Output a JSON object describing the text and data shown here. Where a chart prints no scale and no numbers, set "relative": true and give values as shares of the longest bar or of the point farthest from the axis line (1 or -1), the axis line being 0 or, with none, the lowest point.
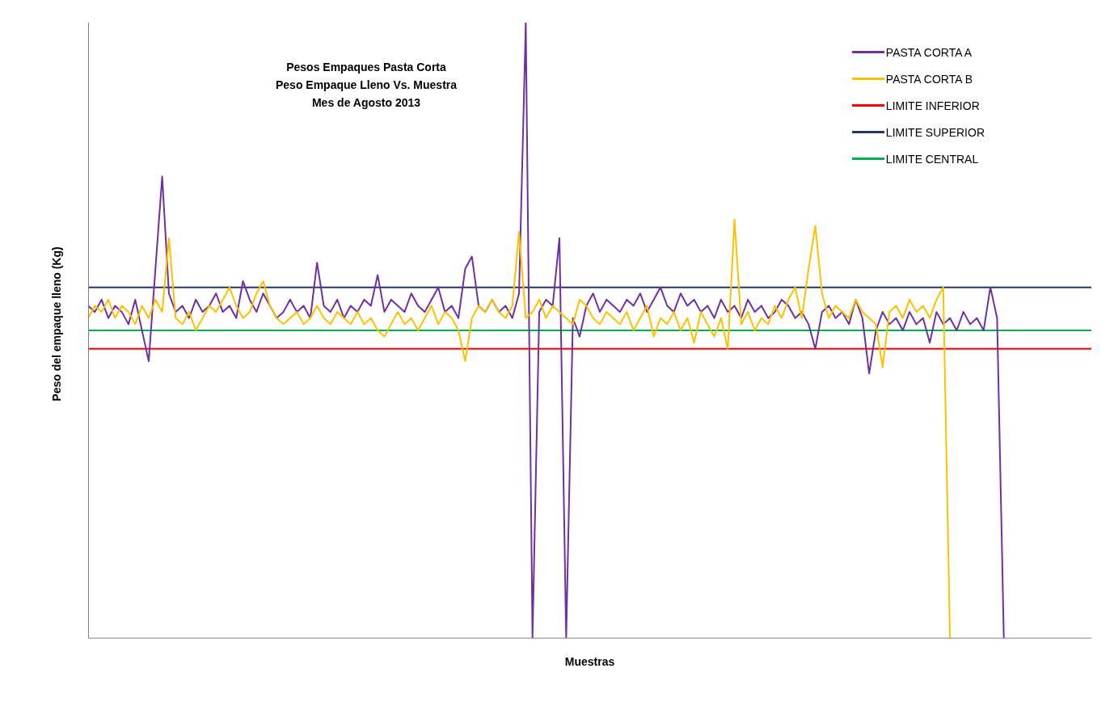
{
  "chart_data": {
    "type": "line",
    "relative": true,
    "title": "Pesos Empaques Pasta Corta\nPeso Empaque Lleno Vs. Muestra\nMes de Agosto 2013",
    "xlabel": "Muestras",
    "ylabel": "Peso del empaque lleno (Kg)",
    "legend": "top right",
    "categories": [
      null,
      null,
      null,
      null,
      null,
      null,
      null,
      null,
      null,
      null,
      null,
      null,
      null,
      null,
      null,
      null,
      null,
      null,
      null,
      null,
      null,
      null,
      null,
      null,
      null,
      null,
      null,
      null,
      null,
      null,
      null,
      null,
      null,
      null,
      null,
      null,
      null,
      null,
      null,
      null,
      null,
      null,
      null,
      null,
      null,
      null,
      null,
      null,
      null,
      null,
      null,
      null,
      null,
      null,
      null,
      null,
      null,
      null,
      null,
      null,
      null,
      null,
      null,
      null,
      null,
      null,
      null,
      null,
      null,
      null,
      null,
      null,
      null,
      null,
      null,
      null,
      null,
      null,
      null,
      null,
      null,
      null,
      null,
      null,
      null,
      null,
      null,
      null,
      null,
      null,
      null,
      null,
      null,
      null,
      null,
      null,
      null,
      null,
      null,
      null,
      null,
      null,
      null,
      null,
      null,
      null,
      null,
      null,
      null,
      null,
      null,
      null,
      null,
      null,
      null,
      null,
      null,
      null,
      null,
      null,
      null,
      null,
      null,
      null,
      null,
      null,
      null,
      null,
      null,
      null,
      null,
      null,
      null,
      null,
      null,
      null,
      null,
      null,
      null,
      null,
      null,
      null,
      null,
      null,
      null,
      null,
      null,
      null,
      null,
      null
    ],
    "series": [
      {
        "name": "PASTA CORTA A",
        "color": "#7030a0",
        "values": [
          0.54,
          0.53,
          0.55,
          0.52,
          0.54,
          0.53,
          0.51,
          0.55,
          0.5,
          0.45,
          0.6,
          0.75,
          0.56,
          0.53,
          0.54,
          0.52,
          0.55,
          0.53,
          0.54,
          0.56,
          0.53,
          0.54,
          0.52,
          0.58,
          0.55,
          0.53,
          0.56,
          0.54,
          0.52,
          0.53,
          0.55,
          0.53,
          0.54,
          0.52,
          0.61,
          0.54,
          0.53,
          0.55,
          0.52,
          0.54,
          0.53,
          0.55,
          0.54,
          0.59,
          0.53,
          0.55,
          0.54,
          0.53,
          0.56,
          0.54,
          0.53,
          0.55,
          0.57,
          0.53,
          0.54,
          0.52,
          0.6,
          0.62,
          0.54,
          0.53,
          0.55,
          0.53,
          0.54,
          0.52,
          0.56,
          1.0,
          0,
          0.53,
          0.55,
          0.54,
          0.65,
          0,
          0.52,
          0.49,
          0.54,
          0.56,
          0.53,
          0.55,
          0.54,
          0.53,
          0.55,
          0.54,
          0.56,
          0.53,
          0.55,
          0.57,
          0.54,
          0.53,
          0.56,
          0.54,
          0.55,
          0.53,
          0.54,
          0.52,
          0.55,
          0.53,
          0.54,
          0.52,
          0.55,
          0.53,
          0.54,
          0.52,
          0.53,
          0.55,
          0.54,
          0.52,
          0.53,
          0.51,
          0.47,
          0.53,
          0.54,
          0.52,
          0.53,
          0.51,
          0.55,
          0.52,
          0.43,
          0.5,
          0.53,
          0.51,
          0.52,
          0.5,
          0.53,
          0.51,
          0.52,
          0.48,
          0.53,
          0.51,
          0.52,
          0.5,
          0.53,
          0.51,
          0.52,
          0.5,
          0.57,
          0.52,
          0,
          null,
          null,
          null,
          null,
          null,
          null,
          null,
          null,
          null,
          null,
          null,
          null,
          null
        ]
      },
      {
        "name": "PASTA CORTA B",
        "color": "#ffc000",
        "values": [
          0.52,
          0.54,
          0.53,
          0.55,
          0.52,
          0.54,
          0.53,
          0.51,
          0.54,
          0.52,
          0.55,
          0.53,
          0.65,
          0.52,
          0.51,
          0.53,
          0.5,
          0.52,
          0.54,
          0.53,
          0.55,
          0.57,
          0.54,
          0.52,
          0.53,
          0.56,
          0.58,
          0.54,
          0.52,
          0.51,
          0.52,
          0.53,
          0.51,
          0.52,
          0.54,
          0.52,
          0.51,
          0.53,
          0.52,
          0.51,
          0.53,
          0.51,
          0.52,
          0.5,
          0.49,
          0.51,
          0.53,
          0.51,
          0.52,
          0.5,
          0.52,
          0.54,
          0.51,
          0.53,
          0.52,
          0.5,
          0.45,
          0.52,
          0.54,
          0.53,
          0.55,
          0.53,
          0.52,
          0.54,
          0.66,
          0.52,
          0.53,
          0.55,
          0.52,
          0.54,
          0.53,
          0.52,
          0.51,
          0.55,
          0.54,
          0.52,
          0.51,
          0.53,
          0.52,
          0.51,
          0.53,
          0.5,
          0.52,
          0.54,
          0.49,
          0.52,
          0.51,
          0.53,
          0.5,
          0.52,
          0.48,
          0.53,
          0.51,
          0.49,
          0.52,
          0.47,
          0.68,
          0.51,
          0.53,
          0.5,
          0.52,
          0.51,
          0.54,
          0.52,
          0.55,
          0.57,
          0.52,
          0.6,
          0.67,
          0.56,
          0.52,
          0.54,
          0.53,
          0.52,
          0.55,
          0.53,
          0.52,
          0.51,
          0.44,
          0.53,
          0.54,
          0.52,
          0.55,
          0.53,
          0.54,
          0.52,
          0.55,
          0.57,
          0,
          null,
          null,
          null,
          null,
          null,
          null,
          null,
          null,
          null,
          null,
          null,
          null,
          null,
          null,
          null,
          null,
          null,
          null,
          null,
          null,
          null
        ]
      }
    ],
    "ref_lines": [
      {
        "axis": "y",
        "value": 0.47,
        "label": "LIMITE INFERIOR",
        "color": "#ff0000"
      },
      {
        "axis": "y",
        "value": 0.57,
        "label": "LIMITE SUPERIOR",
        "color": "#1f3864"
      },
      {
        "axis": "y",
        "value": 0.5,
        "label": "LIMITE CENTRAL",
        "color": "#00b050"
      }
    ]
  }
}
